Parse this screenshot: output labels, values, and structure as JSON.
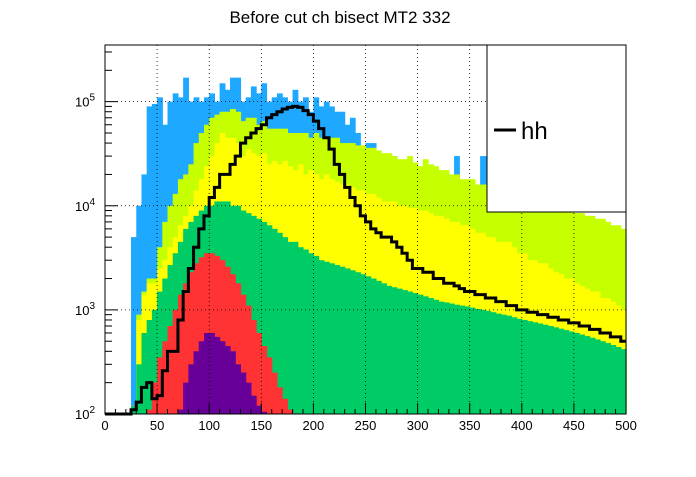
{
  "chart_data": {
    "type": "area",
    "title": "Before cut ch bisect MT2 332",
    "xlabel": "",
    "ylabel": "",
    "xlim": [
      0,
      500
    ],
    "ylim": [
      100,
      350000
    ],
    "ylog": true,
    "grid": true,
    "x_ticks": [
      0,
      50,
      100,
      150,
      200,
      250,
      300,
      350,
      400,
      450,
      500
    ],
    "x_tick_labels": [
      "0",
      "50",
      "100",
      "150",
      "200",
      "250",
      "300",
      "350",
      "400",
      "450",
      "500"
    ],
    "y_ticks": [
      100,
      1000,
      10000,
      100000
    ],
    "y_tick_labels": [
      {
        "base": "10",
        "exp": "2"
      },
      {
        "base": "10",
        "exp": "3"
      },
      {
        "base": "10",
        "exp": "4"
      },
      {
        "base": "10",
        "exp": "5"
      }
    ],
    "legend": {
      "position": "top-right",
      "entries": [
        {
          "label": "hh",
          "color": "#000000"
        }
      ]
    },
    "bin_width": 5,
    "x_start": 0,
    "stacked_series": [
      {
        "color": "#1ea8ff",
        "values": [
          0,
          0,
          0,
          0,
          0,
          5000,
          10000,
          20000,
          90000,
          95000,
          110000,
          60000,
          100000,
          120000,
          110000,
          170000,
          100000,
          110000,
          100000,
          110000,
          120000,
          100000,
          150000,
          130000,
          170000,
          170000,
          100000,
          110000,
          140000,
          120000,
          150000,
          100000,
          110000,
          120000,
          110000,
          100000,
          130000,
          100000,
          110000,
          80000,
          110000,
          90000,
          100000,
          90000,
          80000,
          80000,
          60000,
          70000,
          50000,
          30000,
          40000,
          40000,
          30000,
          30000,
          20000,
          30000,
          25000,
          20000,
          20000,
          18000,
          18000,
          20000,
          18000,
          18000,
          16000,
          14000,
          14000,
          30000,
          14000,
          13000,
          12000,
          12000,
          30000,
          30000,
          12000,
          11000,
          10000,
          10000,
          10000,
          11000,
          9000,
          9000,
          8000,
          8000,
          8000,
          8000,
          7000,
          7000,
          7000,
          7000,
          6000,
          6000,
          6000,
          6000,
          5000,
          5000,
          5000,
          5000,
          5000,
          5000
        ]
      },
      {
        "color": "#c6ff00",
        "values": [
          0,
          0,
          0,
          0,
          0,
          120,
          900,
          1500,
          2000,
          2000,
          4000,
          7000,
          10000,
          13000,
          18000,
          20000,
          25000,
          40000,
          50000,
          60000,
          70000,
          75000,
          80000,
          80000,
          85000,
          80000,
          65000,
          70000,
          70000,
          60000,
          65000,
          55000,
          55000,
          55000,
          55000,
          50000,
          50000,
          50000,
          50000,
          45000,
          50000,
          45000,
          45000,
          45000,
          45000,
          40000,
          40000,
          40000,
          38000,
          38000,
          36000,
          36000,
          34000,
          32000,
          32000,
          30000,
          28000,
          28000,
          30000,
          26000,
          24000,
          28000,
          25000,
          24000,
          22000,
          22000,
          20000,
          20000,
          18000,
          18000,
          18000,
          16000,
          16000,
          16000,
          15000,
          15000,
          14000,
          14000,
          13000,
          13000,
          13000,
          12000,
          12000,
          11000,
          11000,
          10000,
          10000,
          9500,
          9000,
          9000,
          8500,
          8500,
          8000,
          8000,
          7500,
          7500,
          7000,
          6500,
          6500,
          6000
        ]
      },
      {
        "color": "#ffff00",
        "values": [
          0,
          0,
          0,
          0,
          0,
          120,
          800,
          1400,
          1800,
          1800,
          2500,
          3000,
          4000,
          5000,
          6500,
          8000,
          10000,
          14000,
          18000,
          24000,
          30000,
          40000,
          50000,
          45000,
          45000,
          40000,
          30000,
          35000,
          32000,
          30000,
          32000,
          25000,
          27000,
          25000,
          27000,
          24000,
          22000,
          25000,
          20000,
          22000,
          20000,
          18000,
          20000,
          18000,
          17000,
          16000,
          16000,
          15000,
          14000,
          14000,
          13000,
          13000,
          12000,
          11000,
          11000,
          11000,
          10000,
          10000,
          9500,
          9500,
          9000,
          9000,
          8500,
          8000,
          8000,
          7500,
          7000,
          7000,
          6500,
          6500,
          6000,
          5500,
          5500,
          5000,
          5000,
          4500,
          4500,
          4500,
          4000,
          3500,
          3500,
          3000,
          3000,
          2800,
          2800,
          2500,
          2300,
          2200,
          2000,
          2000,
          1800,
          1700,
          1600,
          1500,
          1500,
          1300,
          1300,
          1200,
          1100,
          1000
        ]
      },
      {
        "color": "#00cc66",
        "values": [
          0,
          0,
          0,
          0,
          0,
          120,
          300,
          600,
          800,
          1000,
          1500,
          2000,
          2700,
          3500,
          4500,
          6000,
          7000,
          8000,
          9000,
          10000,
          10000,
          11000,
          11000,
          11000,
          10000,
          10000,
          9000,
          8500,
          8000,
          7500,
          7000,
          6500,
          6000,
          5500,
          5000,
          4500,
          4500,
          4000,
          3800,
          3500,
          3300,
          3000,
          2900,
          2800,
          2700,
          2600,
          2500,
          2400,
          2300,
          2200,
          2100,
          2000,
          1900,
          1800,
          1700,
          1650,
          1600,
          1550,
          1500,
          1450,
          1400,
          1350,
          1300,
          1250,
          1200,
          1180,
          1150,
          1120,
          1100,
          1080,
          1050,
          1020,
          1000,
          980,
          950,
          920,
          900,
          880,
          850,
          820,
          800,
          780,
          760,
          740,
          720,
          700,
          680,
          660,
          640,
          620,
          600,
          580,
          560,
          540,
          520,
          500,
          480,
          460,
          440,
          420
        ]
      },
      {
        "color": "#ff3333",
        "values": [
          0,
          0,
          0,
          0,
          0,
          0,
          0,
          0,
          110,
          200,
          350,
          500,
          700,
          1000,
          1400,
          1800,
          2300,
          2800,
          3200,
          3500,
          3500,
          3300,
          3000,
          2600,
          2200,
          1800,
          1400,
          1100,
          800,
          600,
          450,
          350,
          250,
          180,
          140,
          110,
          0,
          0,
          0,
          0,
          0,
          0,
          0,
          0,
          0,
          0,
          0,
          0,
          0,
          0,
          0,
          0,
          0,
          0,
          0,
          0,
          0,
          0,
          0,
          0,
          0,
          0,
          0,
          0,
          0,
          0,
          0,
          0,
          0,
          0,
          0,
          0,
          0,
          0,
          0,
          0,
          0,
          0,
          0,
          0,
          0,
          0,
          0,
          0,
          0,
          0,
          0,
          0,
          0,
          0,
          0,
          0,
          0,
          0,
          0,
          0,
          0,
          0,
          0,
          0
        ]
      },
      {
        "color": "#660099",
        "values": [
          0,
          0,
          0,
          0,
          0,
          0,
          0,
          0,
          0,
          0,
          0,
          0,
          0,
          0,
          110,
          200,
          300,
          400,
          500,
          600,
          600,
          550,
          500,
          450,
          400,
          300,
          250,
          200,
          150,
          120,
          105,
          0,
          0,
          0,
          0,
          0,
          0,
          0,
          0,
          0,
          0,
          0,
          0,
          0,
          0,
          0,
          0,
          0,
          0,
          0,
          0,
          0,
          0,
          0,
          0,
          0,
          0,
          0,
          0,
          0,
          0,
          0,
          0,
          0,
          0,
          0,
          0,
          0,
          0,
          0,
          0,
          0,
          0,
          0,
          0,
          0,
          0,
          0,
          0,
          0,
          0,
          0,
          0,
          0,
          0,
          0,
          0,
          0,
          0,
          0,
          0,
          0,
          0,
          0,
          0,
          0,
          0,
          0,
          0,
          0
        ]
      }
    ],
    "line_series": {
      "name": "hh",
      "color": "#000000",
      "values": [
        0,
        0,
        0,
        0,
        0,
        110,
        130,
        180,
        200,
        140,
        150,
        260,
        400,
        400,
        800,
        1500,
        2500,
        4000,
        6000,
        8000,
        12000,
        15000,
        20000,
        20000,
        25000,
        30000,
        40000,
        45000,
        50000,
        55000,
        60000,
        70000,
        75000,
        80000,
        85000,
        88000,
        90000,
        88000,
        82000,
        75000,
        65000,
        55000,
        45000,
        35000,
        25000,
        20000,
        15000,
        12000,
        10000,
        8000,
        7000,
        6000,
        5500,
        5000,
        5000,
        4500,
        4000,
        3500,
        3000,
        2500,
        2500,
        2300,
        2300,
        2000,
        2000,
        1800,
        1800,
        1700,
        1600,
        1500,
        1500,
        1400,
        1400,
        1300,
        1300,
        1200,
        1200,
        1100,
        1100,
        1000,
        1000,
        950,
        950,
        900,
        900,
        850,
        850,
        800,
        800,
        750,
        750,
        700,
        700,
        650,
        650,
        600,
        600,
        550,
        550,
        500
      ]
    }
  }
}
